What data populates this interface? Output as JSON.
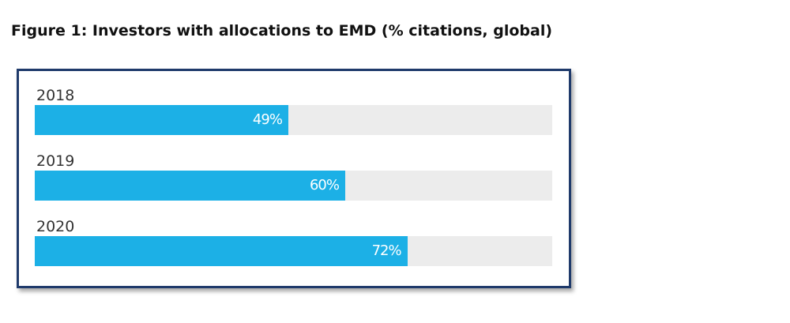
{
  "title": "Figure 1: Investors with allocations to EMD (% citations, global)",
  "colors": {
    "bar": "#1cb0e6",
    "track": "#ececec",
    "frame_border": "#1f3a6b"
  },
  "chart_data": {
    "type": "bar",
    "orientation": "horizontal",
    "categories": [
      "2018",
      "2019",
      "2020"
    ],
    "values": [
      49,
      60,
      72
    ],
    "value_labels": [
      "49%",
      "60%",
      "72%"
    ],
    "xlim": [
      0,
      100
    ],
    "grid": false,
    "legend": "none"
  }
}
